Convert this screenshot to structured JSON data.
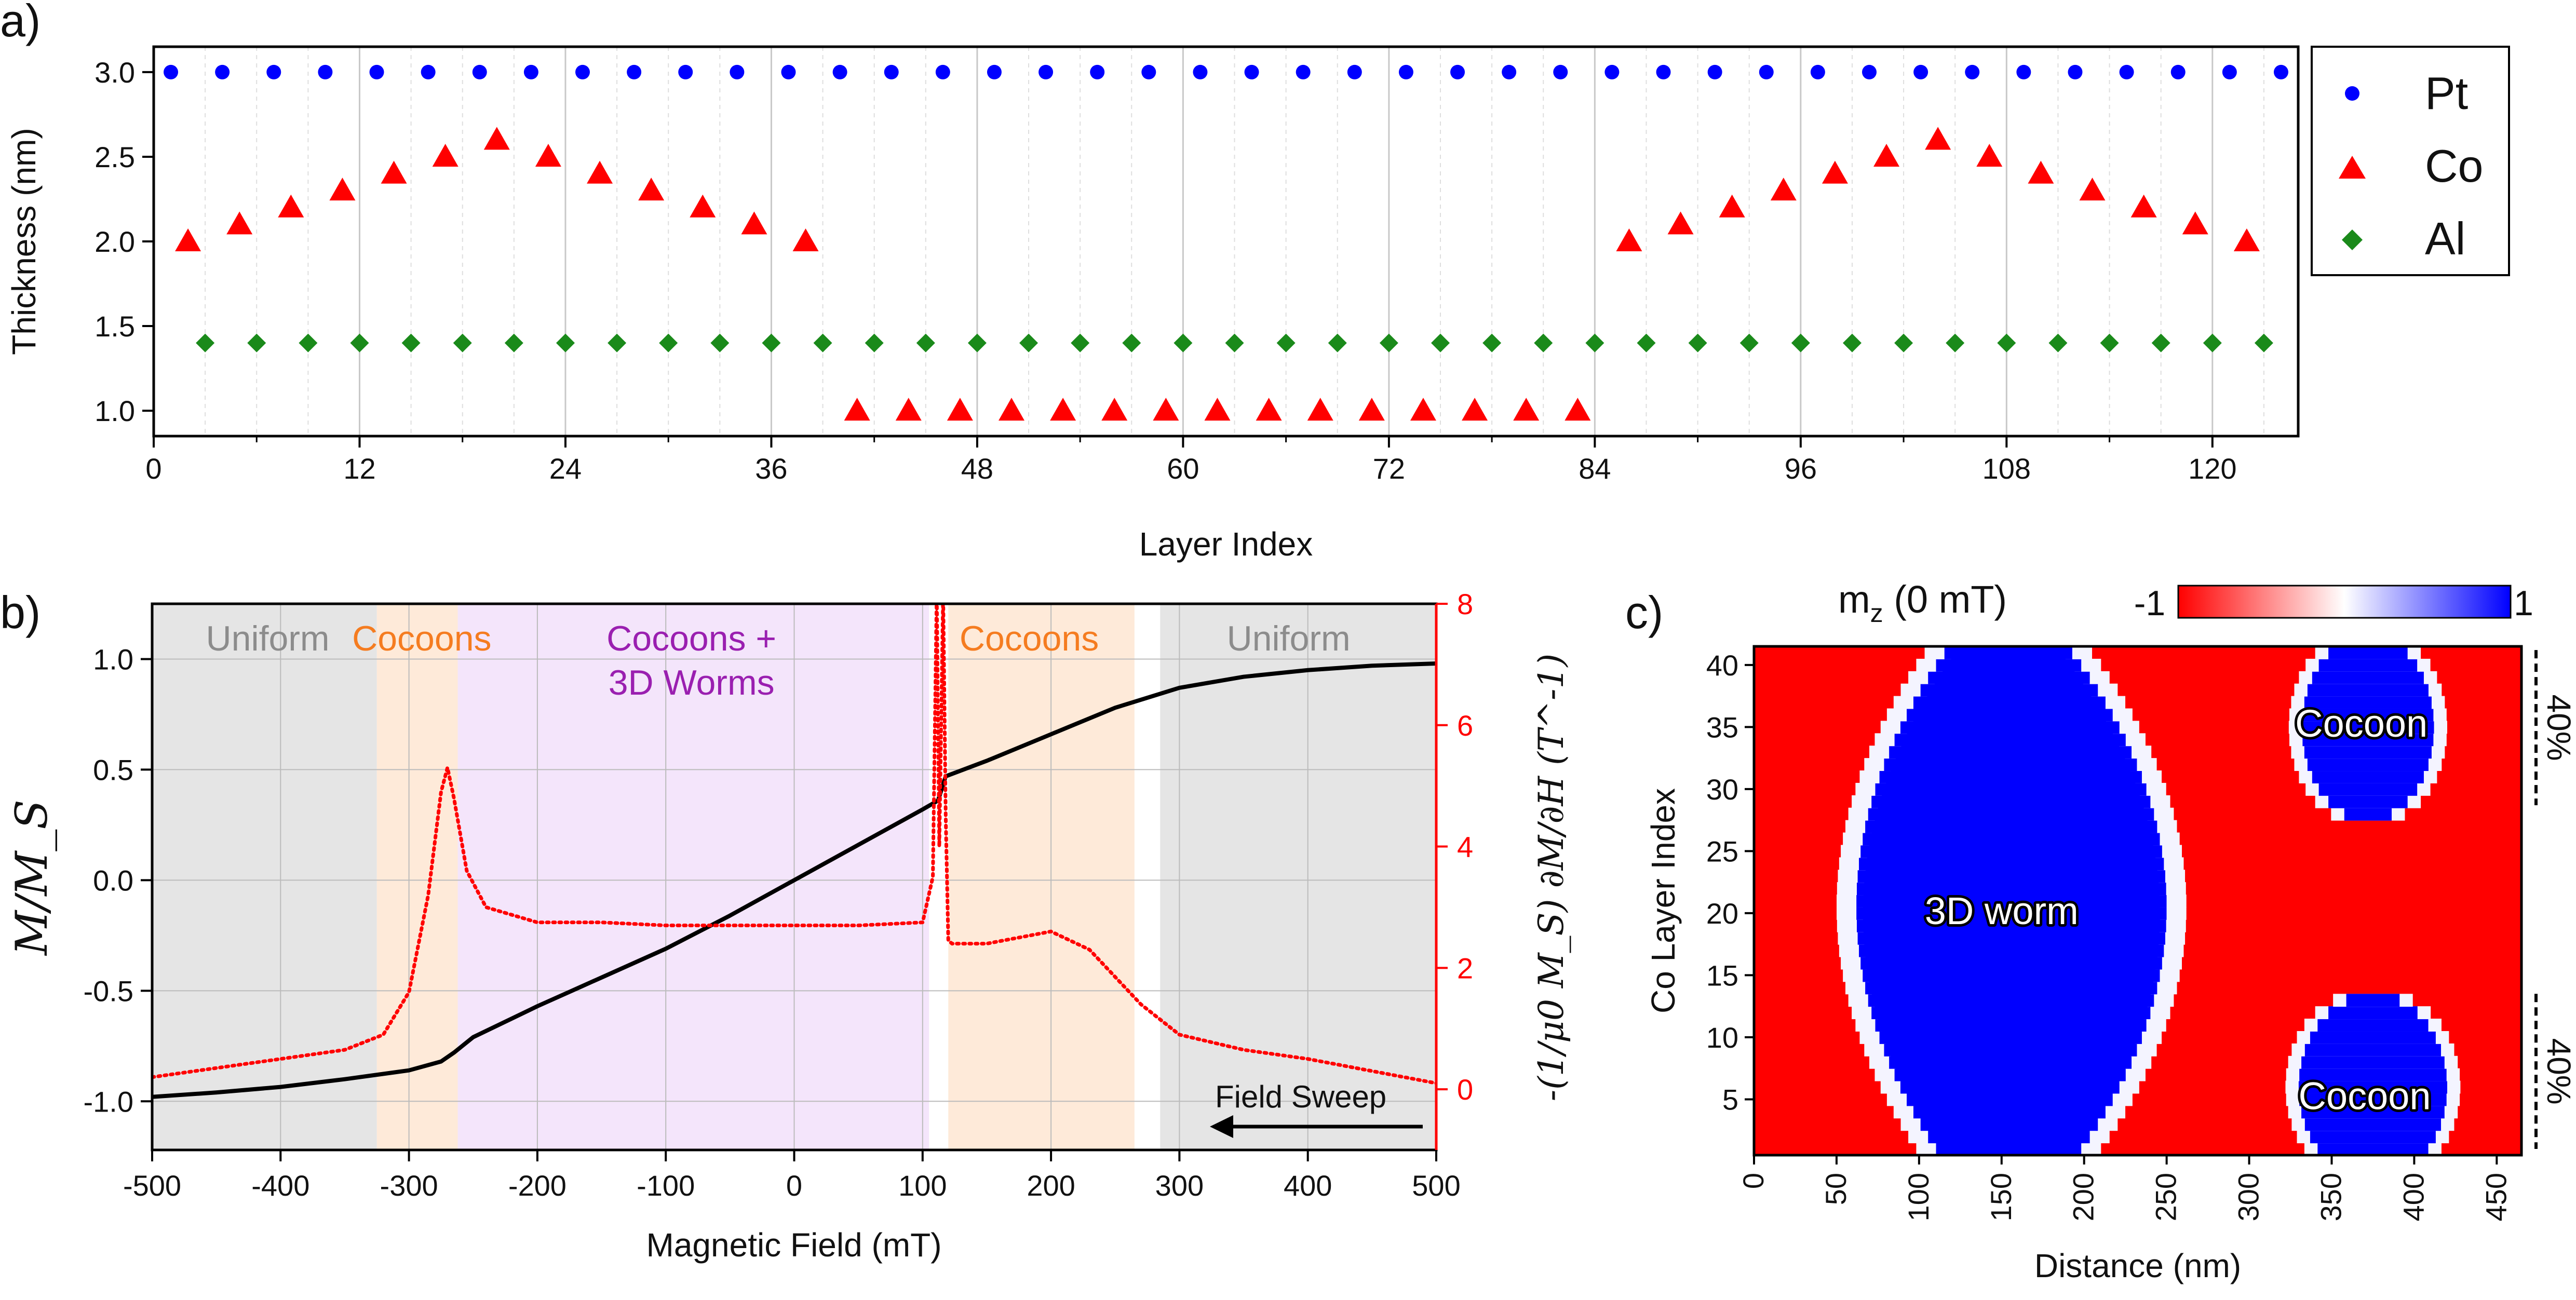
{
  "chart_data": [
    {
      "panel": "a)",
      "type": "scatter",
      "xlabel": "Layer Index",
      "ylabel": "Thickness (nm)",
      "xlim": [
        0,
        125
      ],
      "ylim": [
        0.85,
        3.15
      ],
      "xticks": [
        "0",
        "12",
        "24",
        "36",
        "48",
        "60",
        "72",
        "84",
        "96",
        "108",
        "120"
      ],
      "yticks": [
        "1.0",
        "1.5",
        "2.0",
        "2.5",
        "3.0"
      ],
      "legend": {
        "position": "right",
        "entries": [
          "Pt",
          "Co",
          "Al"
        ]
      },
      "series": [
        {
          "name": "Pt",
          "marker": "circle",
          "color": "#0000ff",
          "x": [
            1,
            4,
            7,
            10,
            13,
            16,
            19,
            22,
            25,
            28,
            31,
            34,
            37,
            40,
            43,
            46,
            49,
            52,
            55,
            58,
            61,
            64,
            67,
            70,
            73,
            76,
            79,
            82,
            85,
            88,
            91,
            94,
            97,
            100,
            103,
            106,
            109,
            112,
            115,
            118,
            121,
            124
          ],
          "y": [
            3.0,
            3.0,
            3.0,
            3.0,
            3.0,
            3.0,
            3.0,
            3.0,
            3.0,
            3.0,
            3.0,
            3.0,
            3.0,
            3.0,
            3.0,
            3.0,
            3.0,
            3.0,
            3.0,
            3.0,
            3.0,
            3.0,
            3.0,
            3.0,
            3.0,
            3.0,
            3.0,
            3.0,
            3.0,
            3.0,
            3.0,
            3.0,
            3.0,
            3.0,
            3.0,
            3.0,
            3.0,
            3.0,
            3.0,
            3.0,
            3.0,
            3.0
          ]
        },
        {
          "name": "Co",
          "marker": "triangle",
          "color": "#ff0000",
          "x": [
            2,
            5,
            8,
            11,
            14,
            17,
            20,
            23,
            26,
            29,
            32,
            35,
            38,
            41,
            44,
            47,
            50,
            53,
            56,
            59,
            62,
            65,
            68,
            71,
            74,
            77,
            80,
            83,
            86,
            89,
            92,
            95,
            98,
            101,
            104,
            107,
            110,
            113,
            116,
            119,
            122
          ],
          "y": [
            2.0,
            2.1,
            2.2,
            2.3,
            2.4,
            2.5,
            2.6,
            2.5,
            2.4,
            2.3,
            2.2,
            2.1,
            2.0,
            1.0,
            1.0,
            1.0,
            1.0,
            1.0,
            1.0,
            1.0,
            1.0,
            1.0,
            1.0,
            1.0,
            1.0,
            1.0,
            1.0,
            1.0,
            2.0,
            2.1,
            2.2,
            2.3,
            2.4,
            2.5,
            2.6,
            2.5,
            2.4,
            2.3,
            2.2,
            2.1,
            2.0
          ]
        },
        {
          "name": "Al",
          "marker": "diamond",
          "color": "#1a8a1a",
          "x": [
            3,
            6,
            9,
            12,
            15,
            18,
            21,
            24,
            27,
            30,
            33,
            36,
            39,
            42,
            45,
            48,
            51,
            54,
            57,
            60,
            63,
            66,
            69,
            72,
            75,
            78,
            81,
            84,
            87,
            90,
            93,
            96,
            99,
            102,
            105,
            108,
            111,
            114,
            117,
            120,
            123
          ],
          "y": [
            1.4,
            1.4,
            1.4,
            1.4,
            1.4,
            1.4,
            1.4,
            1.4,
            1.4,
            1.4,
            1.4,
            1.4,
            1.4,
            1.4,
            1.4,
            1.4,
            1.4,
            1.4,
            1.4,
            1.4,
            1.4,
            1.4,
            1.4,
            1.4,
            1.4,
            1.4,
            1.4,
            1.4,
            1.4,
            1.4,
            1.4,
            1.4,
            1.4,
            1.4,
            1.4,
            1.4,
            1.4,
            1.4,
            1.4,
            1.4,
            1.4
          ]
        }
      ]
    },
    {
      "panel": "b)",
      "type": "line",
      "xlabel": "Magnetic Field (mT)",
      "ylabel": "M/M_S",
      "ylabel_right": "-(1/μ0 M_S) ∂M/∂H (T^-1)",
      "xlim": [
        -500,
        500
      ],
      "ylim": [
        -1.22,
        1.25
      ],
      "ylim_right": [
        -1,
        8
      ],
      "xticks": [
        "-500",
        "-400",
        "-300",
        "-200",
        "-100",
        "0",
        "100",
        "200",
        "300",
        "400",
        "500"
      ],
      "yticks": [
        "-1.0",
        "-0.5",
        "0.0",
        "0.5",
        "1.0"
      ],
      "yticks_right": [
        "0",
        "2",
        "4",
        "6",
        "8"
      ],
      "regions": [
        {
          "label": "Uniform",
          "from": -500,
          "to": -325,
          "color": "#dcdcdc"
        },
        {
          "label": "Cocoons",
          "from": -325,
          "to": -262,
          "color": "#fde3cc"
        },
        {
          "label": "Cocoons +",
          "label2": "3D Worms",
          "from": -262,
          "to": 105,
          "color": "#f0dcfa"
        },
        {
          "label": "Cocoons",
          "from": 120,
          "to": 265,
          "color": "#fde3cc"
        },
        {
          "label": "Uniform",
          "from": 285,
          "to": 500,
          "color": "#dcdcdc"
        }
      ],
      "annotation": "Field Sweep",
      "series": [
        {
          "name": "M/M_S",
          "style": "solid",
          "color": "#000000",
          "x": [
            -500,
            -450,
            -400,
            -350,
            -300,
            -275,
            -265,
            -250,
            -200,
            -150,
            -100,
            -50,
            0,
            50,
            100,
            112,
            118,
            150,
            200,
            250,
            300,
            350,
            400,
            450,
            500
          ],
          "y": [
            -0.98,
            -0.96,
            -0.935,
            -0.9,
            -0.86,
            -0.82,
            -0.78,
            -0.71,
            -0.57,
            -0.44,
            -0.31,
            -0.16,
            0.0,
            0.16,
            0.32,
            0.36,
            0.47,
            0.54,
            0.66,
            0.78,
            0.87,
            0.92,
            0.95,
            0.97,
            0.98
          ]
        },
        {
          "name": "-(1/μ0 M_S) dM/dH",
          "style": "dotted",
          "color": "#ff0000",
          "axis": "right",
          "x": [
            -500,
            -450,
            -400,
            -350,
            -320,
            -300,
            -285,
            -275,
            -270,
            -265,
            -255,
            -240,
            -200,
            -150,
            -100,
            -50,
            0,
            50,
            100,
            108,
            111,
            113,
            116,
            118,
            120,
            123,
            150,
            200,
            230,
            270,
            300,
            350,
            400,
            450,
            500
          ],
          "y": [
            0.2,
            0.35,
            0.5,
            0.65,
            0.9,
            1.6,
            3.2,
            4.9,
            5.3,
            4.8,
            3.6,
            3.0,
            2.75,
            2.75,
            2.7,
            2.7,
            2.7,
            2.7,
            2.75,
            3.5,
            8.2,
            4.0,
            8.2,
            4.5,
            2.45,
            2.4,
            2.4,
            2.6,
            2.3,
            1.4,
            0.9,
            0.65,
            0.5,
            0.3,
            0.1
          ]
        }
      ]
    },
    {
      "panel": "c)",
      "type": "heatmap",
      "title": "m_z (0 mT)",
      "xlabel": "Distance (nm)",
      "ylabel": "Co Layer Index",
      "xlim": [
        0,
        465
      ],
      "ylim": [
        0.5,
        41.5
      ],
      "xticks": [
        "0",
        "50",
        "100",
        "150",
        "200",
        "250",
        "300",
        "350",
        "400",
        "450"
      ],
      "yticks": [
        "5",
        "10",
        "15",
        "20",
        "25",
        "30",
        "35",
        "40"
      ],
      "colorbar": {
        "min": -1,
        "max": 1,
        "min_label": "-1",
        "max_label": "1",
        "low_color": "#ff0000",
        "mid_color": "#ffffff",
        "high_color": "#0000ff"
      },
      "labels": [
        "Cocoon",
        "3D worm",
        "Cocoon"
      ],
      "brackets": [
        "40%",
        "40%"
      ]
    }
  ]
}
